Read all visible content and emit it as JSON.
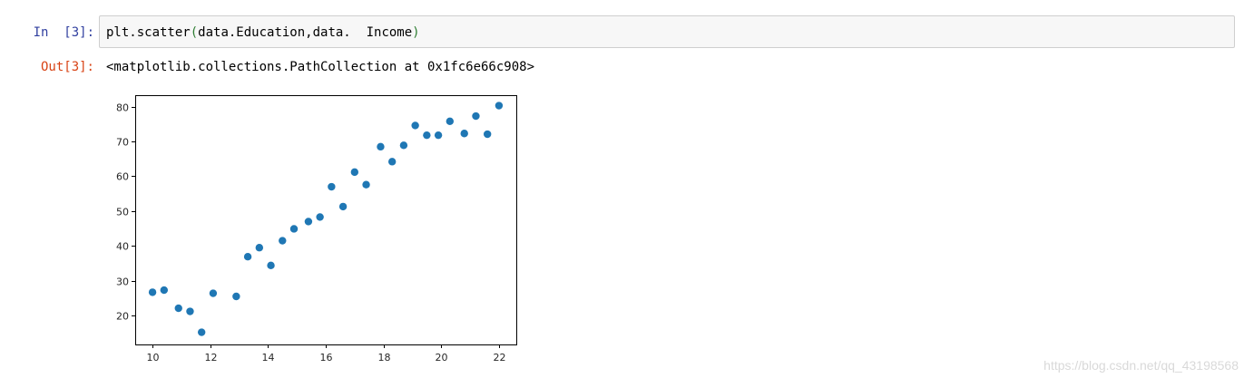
{
  "cell": {
    "in_prompt": "In  [3]:",
    "code_fn": "plt.scatter",
    "code_open": "(",
    "code_args": "data.Education,data.  Income",
    "code_close": ")",
    "out_prompt": "Out[3]:",
    "output_text": "<matplotlib.collections.PathCollection at 0x1fc6e66c908>"
  },
  "chart_data": {
    "type": "scatter",
    "title": "",
    "xlabel": "",
    "ylabel": "",
    "xlim": [
      9.4,
      22.6
    ],
    "ylim": [
      11.7,
      83.3
    ],
    "xticks": [
      10,
      12,
      14,
      16,
      18,
      20,
      22
    ],
    "yticks": [
      20,
      30,
      40,
      50,
      60,
      70,
      80
    ],
    "grid": false,
    "marker_color": "#1f77b4",
    "x": [
      10.0,
      10.4,
      10.9,
      11.3,
      11.7,
      12.1,
      12.9,
      13.3,
      13.7,
      14.1,
      14.5,
      14.9,
      15.4,
      15.8,
      16.2,
      16.6,
      17.0,
      17.4,
      17.9,
      18.3,
      18.7,
      19.1,
      19.5,
      19.9,
      20.3,
      20.8,
      21.2,
      21.6,
      22.0
    ],
    "y": [
      26.7,
      27.3,
      22.1,
      21.2,
      15.2,
      26.4,
      25.5,
      36.9,
      39.5,
      34.4,
      41.5,
      44.9,
      47.0,
      48.3,
      57.0,
      51.3,
      61.2,
      57.6,
      68.5,
      64.2,
      68.9,
      74.6,
      71.8,
      71.8,
      75.8,
      72.3,
      77.3,
      72.1,
      80.3
    ]
  },
  "watermark": "https://blog.csdn.net/qq_43198568"
}
